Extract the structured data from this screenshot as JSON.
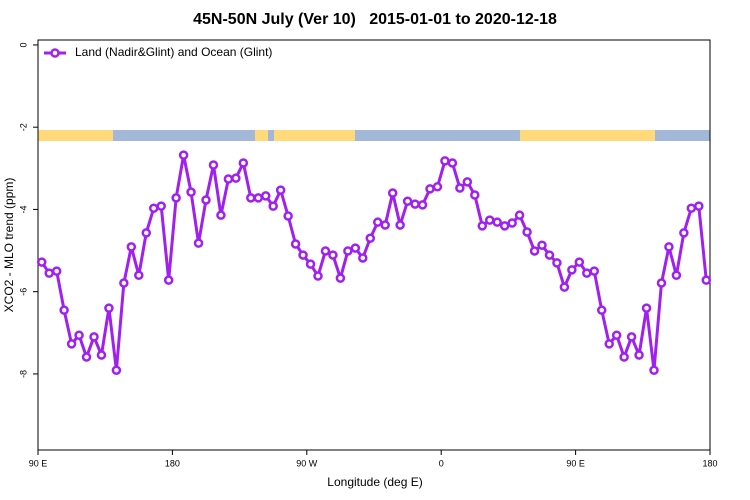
{
  "chart_data": {
    "type": "line",
    "title": "45N-50N July (Ver 10)   2015-01-01 to 2020-12-18",
    "x_label": "Longitude (deg E)",
    "y_label": "XCO2 - MLO trend (ppm)",
    "x": [
      92.5,
      97.5,
      102.5,
      107.5,
      112.5,
      117.5,
      122.5,
      127.5,
      132.5,
      137.5,
      142.5,
      147.5,
      152.5,
      157.5,
      162.5,
      167.5,
      172.5,
      177.5,
      182.5,
      187.5,
      192.5,
      197.5,
      202.5,
      207.5,
      212.5,
      217.5,
      222.5,
      227.5,
      232.5,
      237.5,
      242.5,
      247.5,
      252.5,
      257.5,
      262.5,
      267.5,
      272.5,
      277.5,
      282.5,
      287.5,
      292.5,
      297.5,
      302.5,
      307.5,
      312.5,
      317.5,
      322.5,
      327.5,
      332.5,
      337.5,
      342.5,
      347.5,
      352.5,
      357.5,
      362.5,
      367.5,
      372.5,
      377.5,
      382.5,
      387.5,
      392.5,
      397.5,
      402.5,
      407.5,
      412.5,
      417.5,
      422.5,
      427.5,
      432.5,
      437.5,
      442.5,
      447.5,
      452.5,
      457.5,
      462.5,
      467.5,
      472.5,
      477.5,
      482.5,
      487.5,
      492.5,
      497.5,
      502.5,
      507.5,
      512.5,
      517.5,
      522.5,
      527.5,
      532.5,
      537.5
    ],
    "series": [
      {
        "name": "Land (Nadir&Glint) and Ocean (Glint)",
        "color": "#a020f0",
        "values": [
          -5.28,
          -5.55,
          -5.5,
          -6.45,
          -7.27,
          -7.06,
          -7.59,
          -7.1,
          -7.54,
          -6.4,
          -7.91,
          -5.79,
          -4.91,
          -5.6,
          -4.57,
          -3.97,
          -3.92,
          -5.72,
          -3.72,
          -2.68,
          -3.58,
          -4.82,
          -3.77,
          -2.92,
          -4.14,
          -3.26,
          -3.24,
          -2.87,
          -3.72,
          -3.72,
          -3.67,
          -3.92,
          -3.53,
          -4.16,
          -4.84,
          -5.11,
          -5.33,
          -5.62,
          -5.01,
          -5.11,
          -5.67,
          -5.01,
          -4.94,
          -5.18,
          -4.7,
          -4.31,
          -4.38,
          -3.6,
          -4.38,
          -3.8,
          -3.87,
          -3.89,
          -3.5,
          -3.45,
          -2.82,
          -2.87,
          -3.48,
          -3.33,
          -3.65,
          -4.4,
          -4.26,
          -4.31,
          -4.4,
          -4.33,
          -4.14,
          -4.55,
          -5.01,
          -4.87,
          -5.11,
          -5.3,
          -5.89,
          -5.47,
          -5.28,
          -5.55,
          -5.5,
          -6.45,
          -7.27,
          -7.06,
          -7.59,
          -7.1,
          -7.54,
          -6.4,
          -7.91,
          -5.79,
          -4.91,
          -5.6,
          -4.57,
          -3.97,
          -3.92,
          -5.72
        ]
      }
    ],
    "xlim": [
      90,
      540
    ],
    "xticks": [
      {
        "value": 90,
        "label": "90 E"
      },
      180,
      {
        "value": 270,
        "label": "90 W"
      },
      {
        "value": 360,
        "label": "0"
      },
      {
        "value": 450,
        "label": "90 E"
      },
      {
        "value": 540,
        "label": "180"
      }
    ],
    "ylim": [
      -9.85,
      0.12
    ],
    "yticks": [
      0,
      -2,
      -4,
      -6,
      -8
    ],
    "legend": "top-left"
  }
}
